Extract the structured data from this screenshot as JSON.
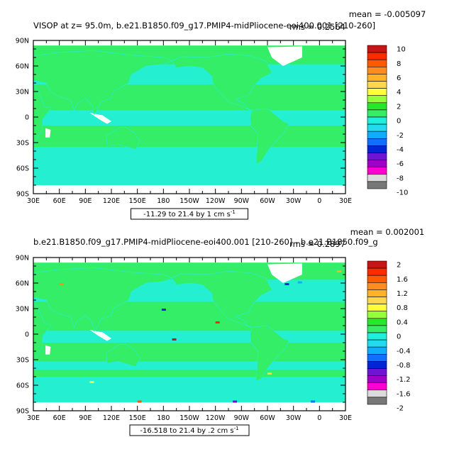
{
  "colors": {
    "ocean_green": "#33ee66",
    "ocean_cyan": "#22eedd",
    "land": "#ffffff",
    "frame": "#000000"
  },
  "chart_data": [
    {
      "type": "heatmap",
      "title": "VISOP at z=   95.0m, b.e21.B1850.f09_g17.PMIP4-midPliocene-eoi400.001 [210-260]",
      "stats_mean": "mean = -0.005097",
      "stats_rms": "rms = 0.2564",
      "caption": "-11.29 to 21.4 by 1 cm s",
      "caption_unit_sup": "-1",
      "x_ticks": [
        "30E",
        "60E",
        "90E",
        "120E",
        "150E",
        "180",
        "150W",
        "120W",
        "90W",
        "60W",
        "30W",
        "0",
        "30E"
      ],
      "y_ticks": [
        "90N",
        "60N",
        "30N",
        "0",
        "30S",
        "60S",
        "90S"
      ],
      "xlim": [
        30,
        390
      ],
      "ylim": [
        -90,
        90
      ],
      "colorbar": {
        "labels": [
          "10",
          "8",
          "6",
          "4",
          "2",
          "0",
          "-2",
          "-4",
          "-6",
          "-8",
          "-10"
        ],
        "colors": [
          "#c81414",
          "#ff2a00",
          "#ff5a00",
          "#ff8c1e",
          "#ffb22c",
          "#ffd84a",
          "#ffff3c",
          "#96ff3c",
          "#28e628",
          "#33ee66",
          "#22eedd",
          "#22dcee",
          "#14aaff",
          "#146eff",
          "#0028d2",
          "#6e14d2",
          "#a000c8",
          "#ff00d2",
          "#dcdcdc",
          "#787878"
        ]
      }
    },
    {
      "type": "heatmap",
      "title": "b.e21.B1850.f09_g17.PMIP4-midPliocene-eoi400.001 [210-260] - b.e21.B1850.f09_g",
      "stats_mean": "mean = 0.002001",
      "stats_rms": "rms = 0.2897",
      "caption": "-16.518 to 21.4 by .2 cm s",
      "caption_unit_sup": "-1",
      "x_ticks": [
        "30E",
        "60E",
        "90E",
        "120E",
        "150E",
        "180",
        "150W",
        "120W",
        "90W",
        "60W",
        "30W",
        "0",
        "30E"
      ],
      "y_ticks": [
        "90N",
        "60N",
        "30N",
        "0",
        "30S",
        "60S",
        "90S"
      ],
      "xlim": [
        30,
        390
      ],
      "ylim": [
        -90,
        90
      ],
      "colorbar": {
        "labels": [
          "2",
          "1.6",
          "1.2",
          "0.8",
          "0.4",
          "0",
          "-0.4",
          "-0.8",
          "-1.2",
          "-1.6",
          "-2"
        ],
        "colors": [
          "#c81414",
          "#ff2a00",
          "#ff5a00",
          "#ff8c1e",
          "#ffb22c",
          "#ffd84a",
          "#ffff3c",
          "#96ff3c",
          "#28e628",
          "#33ee66",
          "#22eedd",
          "#22dcee",
          "#14aaff",
          "#146eff",
          "#0028d2",
          "#6e14d2",
          "#a000c8",
          "#ff00d2",
          "#dcdcdc",
          "#787878"
        ]
      }
    }
  ]
}
